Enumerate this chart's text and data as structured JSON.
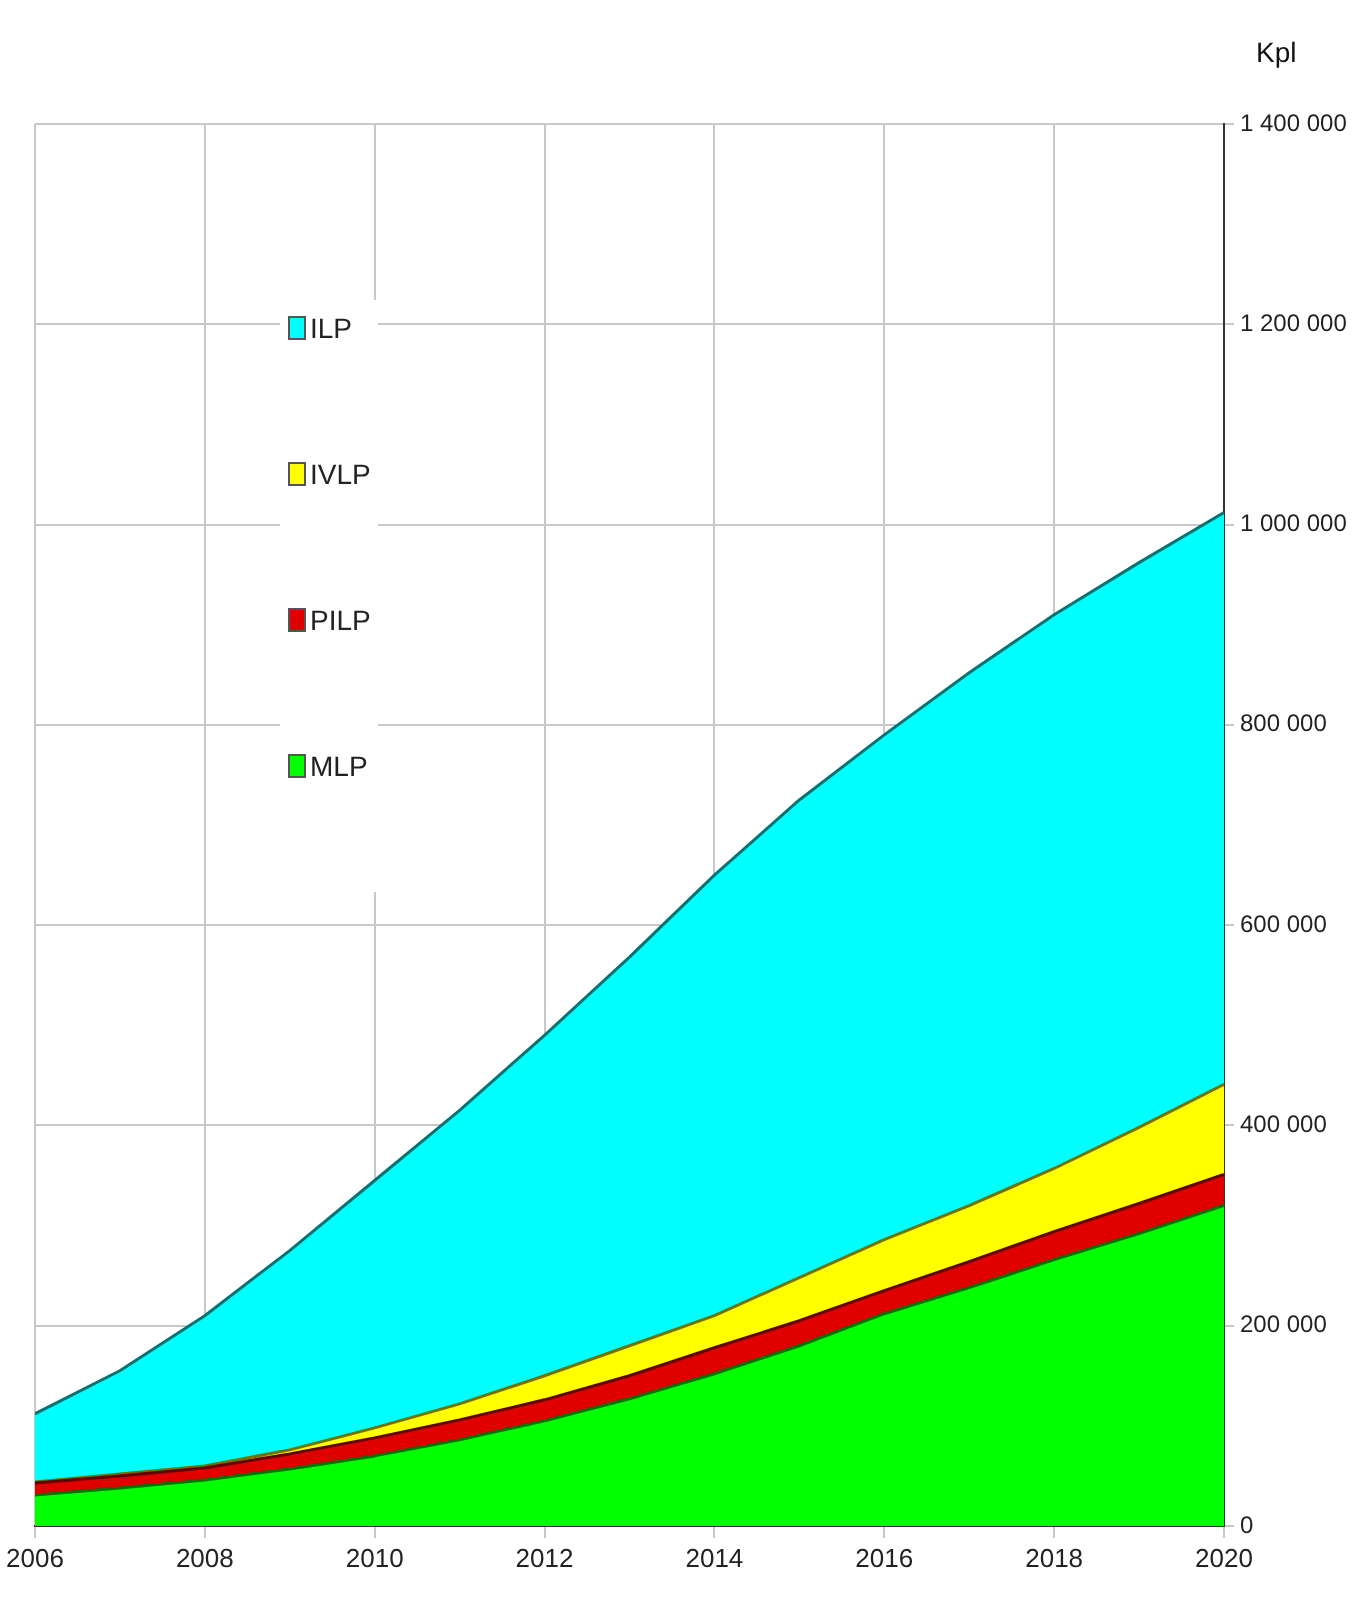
{
  "chart_data": {
    "type": "area",
    "stacked": true,
    "ylabel": "Kpl",
    "x": [
      2006,
      2007,
      2008,
      2009,
      2010,
      2011,
      2012,
      2013,
      2014,
      2015,
      2016,
      2017,
      2018,
      2019,
      2020
    ],
    "series": [
      {
        "name": "MLP",
        "color": "#00ff00",
        "values": [
          31000,
          38000,
          46000,
          57000,
          70000,
          86000,
          105000,
          127000,
          152000,
          180000,
          212000,
          238000,
          266000,
          292000,
          320000
        ]
      },
      {
        "name": "PILP",
        "color": "#e00000",
        "values": [
          12000,
          12000,
          12000,
          15000,
          18000,
          20000,
          21000,
          23000,
          26000,
          25000,
          23000,
          26000,
          28000,
          30000,
          31000
        ]
      },
      {
        "name": "IVLP",
        "color": "#ffff00",
        "values": [
          1000,
          2000,
          2000,
          4000,
          10000,
          16000,
          24000,
          30000,
          32000,
          43000,
          51000,
          56000,
          63000,
          76000,
          90000
        ]
      },
      {
        "name": "ILP",
        "color": "#00ffff",
        "values": [
          68000,
          103000,
          150000,
          199000,
          247000,
          293000,
          340000,
          388000,
          440000,
          477000,
          504000,
          532000,
          553000,
          564000,
          571000
        ]
      }
    ],
    "xlim": [
      2006,
      2020
    ],
    "xticks": [
      2006,
      2008,
      2010,
      2012,
      2014,
      2016,
      2018,
      2020
    ],
    "ylim": [
      0,
      1400000
    ],
    "yticks": [
      0,
      {
        "value": 200000,
        "label": "200 000"
      },
      {
        "value": 400000,
        "label": "400 000"
      },
      {
        "value": 600000,
        "label": "600 000"
      },
      {
        "value": 800000,
        "label": "800 000"
      },
      {
        "value": 1000000,
        "label": "1 000 000"
      },
      {
        "value": 1200000,
        "label": "1 200 000"
      },
      {
        "value": 1400000,
        "label": "1 400 000"
      }
    ],
    "grid": true,
    "legend": "top left"
  }
}
